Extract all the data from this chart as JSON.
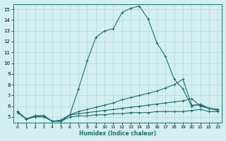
{
  "xlabel": "Humidex (Indice chaleur)",
  "ylabel": "",
  "background_color": "#d4efef",
  "grid_color": "#b8dcdc",
  "line_color": "#1a7070",
  "xlim": [
    -0.5,
    23.5
  ],
  "ylim": [
    4.5,
    15.5
  ],
  "yticks": [
    5,
    6,
    7,
    8,
    9,
    10,
    11,
    12,
    13,
    14,
    15
  ],
  "xticks": [
    0,
    1,
    2,
    3,
    4,
    5,
    6,
    7,
    8,
    9,
    10,
    11,
    12,
    13,
    14,
    15,
    16,
    17,
    18,
    19,
    20,
    21,
    22,
    23
  ],
  "series": [
    {
      "x": [
        0,
        1,
        2,
        3,
        4,
        5,
        6,
        7,
        8,
        9,
        10,
        11,
        12,
        13,
        14,
        15,
        16,
        17,
        18,
        19,
        20,
        21,
        22,
        23
      ],
      "y": [
        5.5,
        4.8,
        5.1,
        5.1,
        4.6,
        4.6,
        5.2,
        7.6,
        10.2,
        12.4,
        13.0,
        13.2,
        14.7,
        15.1,
        15.3,
        14.1,
        11.9,
        10.6,
        8.5,
        7.6,
        6.0,
        6.2,
        5.8,
        5.7
      ]
    },
    {
      "x": [
        0,
        1,
        2,
        3,
        4,
        5,
        6,
        7,
        8,
        9,
        10,
        11,
        12,
        13,
        14,
        15,
        16,
        17,
        18,
        19,
        20,
        21,
        22,
        23
      ],
      "y": [
        5.5,
        4.8,
        5.1,
        5.1,
        4.6,
        4.7,
        5.2,
        5.5,
        5.7,
        5.9,
        6.1,
        6.3,
        6.6,
        6.8,
        7.0,
        7.2,
        7.4,
        7.7,
        8.0,
        8.5,
        6.1,
        6.1,
        5.8,
        5.7
      ]
    },
    {
      "x": [
        0,
        1,
        2,
        3,
        4,
        5,
        6,
        7,
        8,
        9,
        10,
        11,
        12,
        13,
        14,
        15,
        16,
        17,
        18,
        19,
        20,
        21,
        22,
        23
      ],
      "y": [
        5.5,
        4.8,
        5.1,
        5.1,
        4.6,
        4.7,
        5.2,
        5.3,
        5.4,
        5.5,
        5.6,
        5.7,
        5.8,
        5.9,
        6.0,
        6.1,
        6.2,
        6.3,
        6.4,
        6.5,
        6.7,
        6.0,
        5.8,
        5.6
      ]
    },
    {
      "x": [
        0,
        1,
        2,
        3,
        4,
        5,
        6,
        7,
        8,
        9,
        10,
        11,
        12,
        13,
        14,
        15,
        16,
        17,
        18,
        19,
        20,
        21,
        22,
        23
      ],
      "y": [
        5.4,
        4.8,
        5.0,
        5.0,
        4.6,
        4.6,
        5.0,
        5.1,
        5.1,
        5.2,
        5.2,
        5.3,
        5.3,
        5.4,
        5.4,
        5.4,
        5.5,
        5.5,
        5.5,
        5.5,
        5.6,
        5.7,
        5.5,
        5.5
      ]
    }
  ]
}
